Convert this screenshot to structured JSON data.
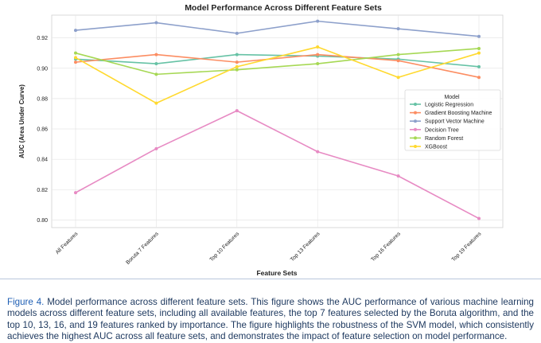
{
  "chart_data": {
    "type": "line",
    "title": "Model Performance Across Different Feature Sets",
    "xlabel": "Feature Sets",
    "ylabel": "AUC (Area Under Curve)",
    "categories": [
      "All Features",
      "Boruta 7 Features",
      "Top 10 Features",
      "Top 13 Features",
      "Top 16 Features",
      "Top 19 Features"
    ],
    "ylim": [
      0.795,
      0.935
    ],
    "yticks": [
      "0.80",
      "0.82",
      "0.84",
      "0.86",
      "0.88",
      "0.90",
      "0.92"
    ],
    "grid": true,
    "legend": {
      "title": "Model",
      "placement": "right"
    },
    "series": [
      {
        "name": "Logistic Regression",
        "color": "#66c2a5",
        "values": [
          0.906,
          0.903,
          0.909,
          0.908,
          0.906,
          0.901
        ]
      },
      {
        "name": "Gradient Boosting Machine",
        "color": "#fc8d62",
        "values": [
          0.904,
          0.909,
          0.904,
          0.909,
          0.905,
          0.894
        ]
      },
      {
        "name": "Support Vector Machine",
        "color": "#8da0cb",
        "values": [
          0.925,
          0.93,
          0.923,
          0.931,
          0.926,
          0.921
        ]
      },
      {
        "name": "Decision Tree",
        "color": "#e78ac3",
        "values": [
          0.818,
          0.847,
          0.872,
          0.845,
          0.829,
          0.801
        ]
      },
      {
        "name": "Random Forest",
        "color": "#a6d854",
        "values": [
          0.91,
          0.896,
          0.899,
          0.903,
          0.909,
          0.913
        ]
      },
      {
        "name": "XGBoost",
        "color": "#ffd92f",
        "values": [
          0.907,
          0.877,
          0.901,
          0.914,
          0.894,
          0.91
        ]
      }
    ]
  },
  "caption": {
    "label": "Figure 4.",
    "text": " Model performance across different feature sets. This figure shows the AUC performance of various machine learning models across different feature sets, including all available features, the top 7 features selected by the Boruta algorithm, and the top 10, 13, 16, and 19 features ranked by importance. The figure highlights the robustness of the SVM model, which consistently achieves the highest AUC across all feature sets, and demonstrates the impact of feature selection on model performance."
  }
}
